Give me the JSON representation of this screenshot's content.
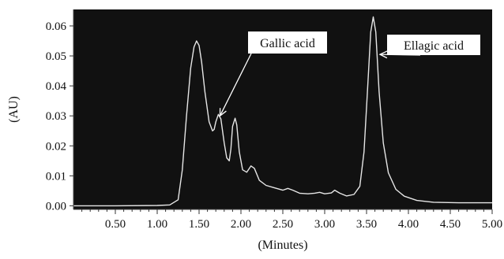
{
  "chart_data": {
    "type": "line",
    "xlabel": "(Minutes)",
    "ylabel": "(AU)",
    "xlim": [
      0,
      5.0
    ],
    "ylim": [
      -0.0012,
      0.0655
    ],
    "x_ticks": [
      0.5,
      1.0,
      1.5,
      2.0,
      2.5,
      3.0,
      3.5,
      4.0,
      4.5,
      5.0
    ],
    "x_tick_labels": [
      "0.50",
      "1.00",
      "1.50",
      "2.00",
      "2.50",
      "3.00",
      "3.50",
      "4.00",
      "4.50",
      "5.00"
    ],
    "y_ticks": [
      0.0,
      0.01,
      0.02,
      0.03,
      0.04,
      0.05,
      0.06
    ],
    "y_tick_labels": [
      "0.00",
      "0.01",
      "0.02",
      "0.03",
      "0.04",
      "0.05",
      "0.06"
    ],
    "grid": false,
    "colors": {
      "plot_background": "#111111",
      "trace": "#e6e6e6"
    },
    "series": [
      {
        "x": [
          0.0,
          0.5,
          1.0,
          1.15,
          1.25,
          1.3,
          1.35,
          1.4,
          1.44,
          1.47,
          1.5,
          1.53,
          1.57,
          1.62,
          1.66,
          1.68,
          1.7,
          1.73,
          1.76,
          1.8,
          1.83,
          1.86,
          1.88,
          1.9,
          1.93,
          1.95,
          1.98,
          2.02,
          2.07,
          2.12,
          2.16,
          2.22,
          2.3,
          2.4,
          2.5,
          2.56,
          2.62,
          2.7,
          2.8,
          2.88,
          2.94,
          3.0,
          3.08,
          3.12,
          3.18,
          3.26,
          3.35,
          3.42,
          3.47,
          3.51,
          3.55,
          3.58,
          3.61,
          3.65,
          3.7,
          3.76,
          3.85,
          3.95,
          4.1,
          4.3,
          4.6,
          4.8,
          5.0
        ],
        "y": [
          0.0,
          0.0,
          0.0001,
          0.0003,
          0.002,
          0.012,
          0.03,
          0.046,
          0.053,
          0.055,
          0.0535,
          0.048,
          0.038,
          0.028,
          0.025,
          0.0255,
          0.028,
          0.0305,
          0.029,
          0.021,
          0.016,
          0.015,
          0.019,
          0.0265,
          0.0292,
          0.027,
          0.018,
          0.012,
          0.0112,
          0.0133,
          0.0125,
          0.0085,
          0.0068,
          0.006,
          0.0052,
          0.0058,
          0.0052,
          0.0042,
          0.004,
          0.0042,
          0.0045,
          0.004,
          0.0043,
          0.0052,
          0.0042,
          0.0033,
          0.0038,
          0.0065,
          0.018,
          0.038,
          0.058,
          0.063,
          0.058,
          0.038,
          0.021,
          0.011,
          0.0055,
          0.0032,
          0.0018,
          0.0012,
          0.001,
          0.001,
          0.001
        ]
      }
    ],
    "annotations": [
      {
        "text": "Gallic acid",
        "arrow_to": [
          1.75,
          0.03
        ]
      },
      {
        "text": "Ellagic acid",
        "arrow_to": [
          3.66,
          0.0505
        ]
      }
    ]
  }
}
